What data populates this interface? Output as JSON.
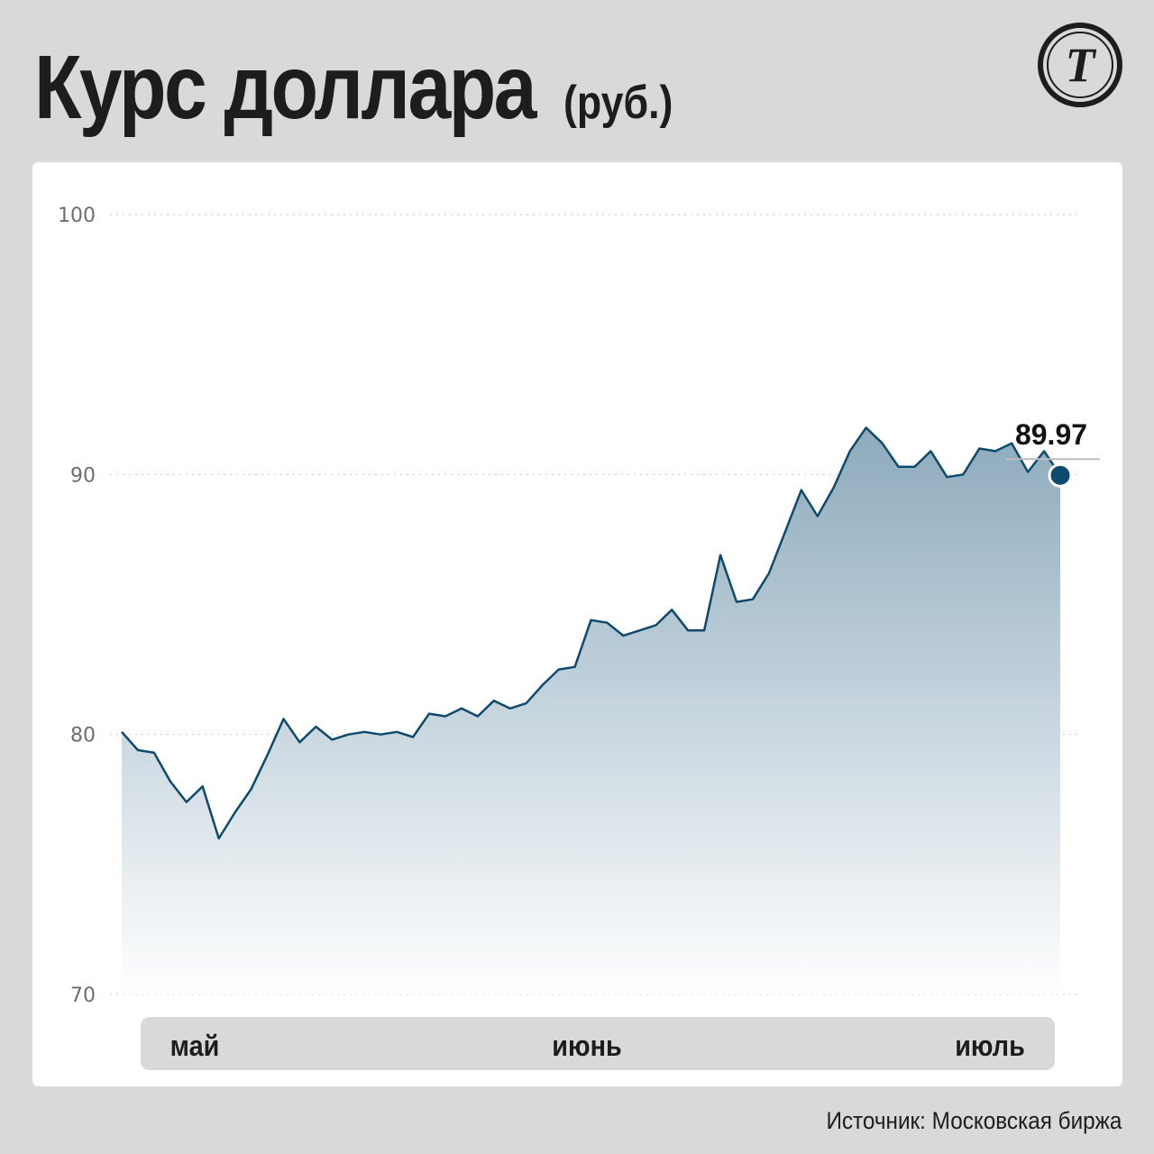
{
  "header": {
    "title": "Курс доллара",
    "unit": "(руб.)"
  },
  "logo": {
    "icon": "newspaper-logo-icon",
    "letter": "Т"
  },
  "source": "Источник: Московская биржа",
  "colors": {
    "background": "#d9d9d9",
    "line": "#0d4a6b",
    "area_top": "#8daabc",
    "marker": "#0d4a6b"
  },
  "chart_data": {
    "type": "area",
    "categories_label": [
      "май",
      "июнь",
      "июль"
    ],
    "y_ticks": [
      100,
      90,
      80,
      70
    ],
    "ylim": [
      70,
      100
    ],
    "grid": true,
    "last_value_label": "89.97",
    "series": [
      {
        "values": [
          80.1,
          79.4,
          79.3,
          78.2,
          77.4,
          78.0,
          76.0,
          77.0,
          77.9,
          79.2,
          80.6,
          79.7,
          80.3,
          79.8,
          80.0,
          80.1,
          80.0,
          80.1,
          79.9,
          80.8,
          80.7,
          81.0,
          80.7,
          81.3,
          81.0,
          81.2,
          81.9,
          82.5,
          82.6,
          84.4,
          84.3,
          83.8,
          84.0,
          84.2,
          84.8,
          84.0,
          84.0,
          86.9,
          85.1,
          85.2,
          86.2,
          87.8,
          89.4,
          88.4,
          89.5,
          90.9,
          91.8,
          91.2,
          90.3,
          90.3,
          90.9,
          89.9,
          90.0,
          91.0,
          90.9,
          91.2,
          90.1,
          90.9,
          89.97
        ]
      }
    ]
  }
}
